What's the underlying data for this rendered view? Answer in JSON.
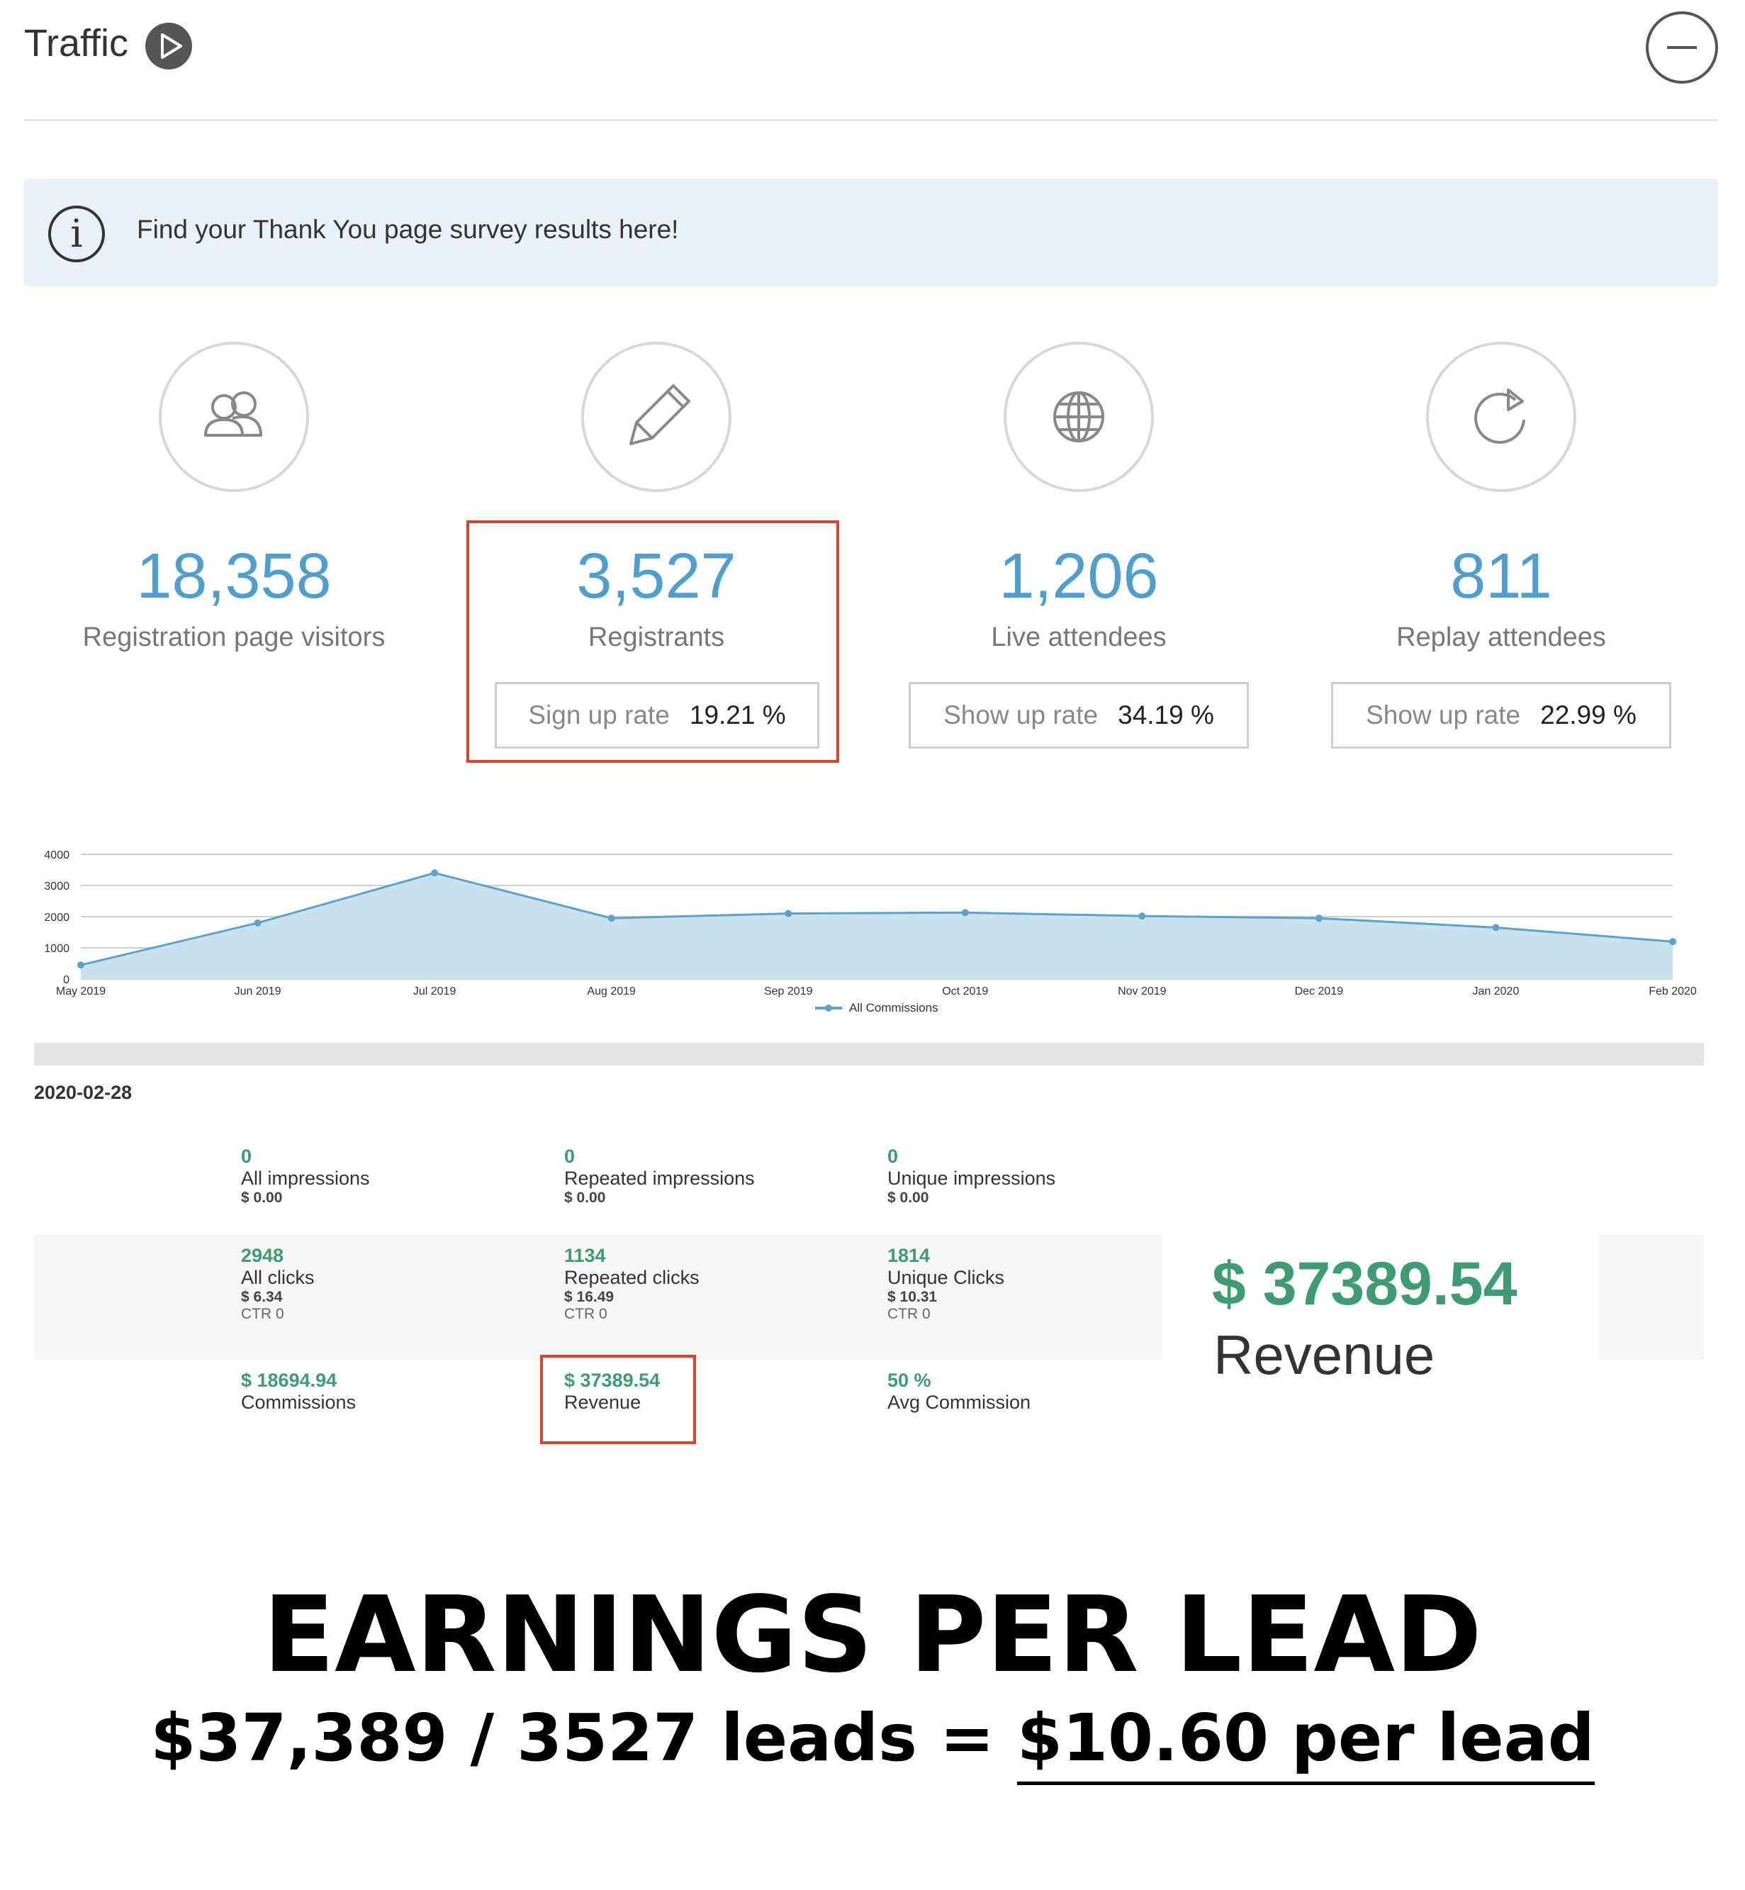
{
  "header": {
    "title": "Traffic",
    "play_icon": "play-icon",
    "collapse_icon": "minus-circle-icon"
  },
  "banner": {
    "text": "Find your Thank You page survey results here!",
    "icon": "info-icon",
    "icon_glyph": "i"
  },
  "stats": [
    {
      "icon": "users-icon",
      "value": "18,358",
      "label": "Registration page visitors"
    },
    {
      "icon": "pencil-icon",
      "value": "3,527",
      "label": "Registrants",
      "rate_label": "Sign up rate",
      "rate_value": "19.21 %"
    },
    {
      "icon": "globe-icon",
      "value": "1,206",
      "label": "Live attendees",
      "rate_label": "Show up rate",
      "rate_value": "34.19 %"
    },
    {
      "icon": "replay-icon",
      "value": "811",
      "label": "Replay attendees",
      "rate_label": "Show up rate",
      "rate_value": "22.99 %"
    }
  ],
  "chart_data": {
    "type": "area",
    "x": [
      "May 2019",
      "Jun 2019",
      "Jul 2019",
      "Aug 2019",
      "Sep 2019",
      "Oct 2019",
      "Nov 2019",
      "Dec 2019",
      "Jan 2020",
      "Feb 2020"
    ],
    "series": [
      {
        "name": "All Commissions",
        "values": [
          450,
          1800,
          3400,
          1950,
          2100,
          2130,
          2020,
          1950,
          1650,
          1200
        ]
      }
    ],
    "yticks": [
      "0",
      "1000",
      "2000",
      "3000",
      "4000"
    ],
    "ylim": [
      0,
      4000
    ],
    "grid": true,
    "legend": "bottom-center",
    "colors": {
      "line": "#5ba3cc",
      "fill": "#c9e2f0"
    }
  },
  "report": {
    "date": "2020-02-28",
    "rows": [
      [
        {
          "value": "0",
          "label": "All impressions",
          "sub": "$ 0.00"
        },
        {
          "value": "0",
          "label": "Repeated impressions",
          "sub": "$ 0.00"
        },
        {
          "value": "0",
          "label": "Unique impressions",
          "sub": "$ 0.00"
        }
      ],
      [
        {
          "value": "2948",
          "label": "All clicks",
          "sub": "$ 6.34",
          "ctr": "CTR 0"
        },
        {
          "value": "1134",
          "label": "Repeated clicks",
          "sub": "$ 16.49",
          "ctr": "CTR 0"
        },
        {
          "value": "1814",
          "label": "Unique Clicks",
          "sub": "$ 10.31",
          "ctr": "CTR 0"
        }
      ],
      [
        {
          "value": "$ 18694.94",
          "label": "Commissions"
        },
        {
          "value": "$ 37389.54",
          "label": "Revenue"
        },
        {
          "value": "50 %",
          "label": "Avg Commission"
        }
      ]
    ],
    "revenue_card": {
      "value": "$ 37389.54",
      "label": "Revenue"
    }
  },
  "caption": {
    "title": "EARNINGS PER LEAD",
    "formula_prefix": "$37,389 / 3527 leads = ",
    "formula_result": "$10.60 per lead"
  },
  "colors": {
    "accent_blue": "#4e9fce",
    "accent_green": "#3e9c75",
    "highlight_red": "#d9432f"
  }
}
